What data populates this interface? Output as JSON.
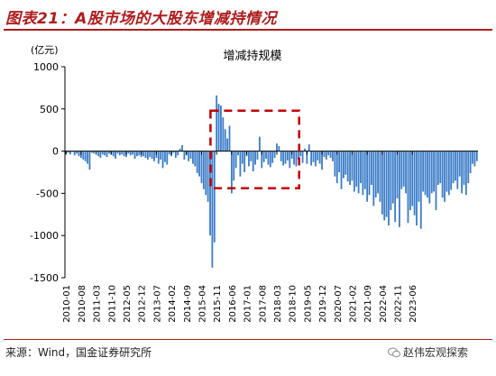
{
  "figure": {
    "title": "图表21：A股市场的大股东增减持情况",
    "source": "来源：Wind，国金证券研究所",
    "watermark": "赵伟宏观探索",
    "watermark_icon": "wechat-icon"
  },
  "chart_data": {
    "type": "bar",
    "title": "增减持规模",
    "ylabel": "(亿元)",
    "xlabel": "",
    "ylim": [
      -1500,
      1000
    ],
    "yticks": [
      1000,
      500,
      0,
      -500,
      -1000,
      -1500
    ],
    "grid": false,
    "legend": "none",
    "bar_color": "#3a7cc8",
    "x_tick_labels": [
      "2010-01",
      "2010-08",
      "2011-03",
      "2011-10",
      "2012-05",
      "2012-12",
      "2013-07",
      "2014-02",
      "2014-09",
      "2015-04",
      "2015-11",
      "2016-06",
      "2017-01",
      "2017-08",
      "2018-03",
      "2018-10",
      "2019-05",
      "2019-12",
      "2020-07",
      "2021-02",
      "2021-09",
      "2022-04",
      "2022-11",
      "2023-06"
    ],
    "start": "2010-01",
    "values": [
      -30,
      -20,
      -40,
      -10,
      -50,
      -30,
      -60,
      -80,
      -100,
      -120,
      -150,
      -220,
      -20,
      -30,
      -10,
      -60,
      -80,
      -40,
      -50,
      -70,
      -30,
      -40,
      -60,
      -90,
      -30,
      -50,
      -40,
      -60,
      -70,
      -30,
      -50,
      -40,
      -90,
      -60,
      -50,
      -70,
      -60,
      -80,
      -100,
      -70,
      -90,
      -120,
      -80,
      -150,
      -100,
      -200,
      -130,
      -160,
      -40,
      -60,
      -20,
      -80,
      -50,
      30,
      70,
      -100,
      -50,
      -120,
      -90,
      -150,
      -180,
      -260,
      -300,
      -380,
      -450,
      -520,
      -600,
      -1000,
      -1380,
      -1080,
      660,
      560,
      540,
      400,
      260,
      150,
      300,
      -500,
      -350,
      -200,
      -50,
      -300,
      -150,
      -250,
      -60,
      -180,
      -120,
      -240,
      -160,
      -100,
      170,
      -200,
      -130,
      -90,
      -160,
      -190,
      -140,
      -80,
      90,
      60,
      -120,
      -170,
      -150,
      -110,
      -200,
      -90,
      -160,
      -180,
      -100,
      -60,
      -140,
      30,
      -150,
      80,
      -170,
      -130,
      -180,
      -110,
      -150,
      -220,
      -70,
      -100,
      -50,
      -80,
      -120,
      -300,
      -380,
      -250,
      -450,
      -320,
      -280,
      -360,
      -400,
      -350,
      -480,
      -420,
      -500,
      -380,
      -520,
      -450,
      -600,
      -520,
      -400,
      -650,
      -550,
      -500,
      -600,
      -750,
      -820,
      -780,
      -880,
      -700,
      -620,
      -840,
      -560,
      -900,
      -450,
      -420,
      -500,
      -850,
      -700,
      -650,
      -760,
      -880,
      -600,
      -920,
      -480,
      -520,
      -550,
      -620,
      -500,
      -480,
      -700,
      -400,
      -380,
      -550,
      -600,
      -480,
      -520,
      -460,
      -380,
      -350,
      -450,
      -300,
      -500,
      -400,
      -520,
      -380,
      -260,
      -150,
      -180,
      -120
    ]
  },
  "annotation": {
    "label": "",
    "color": "#c00000",
    "from": "2015-12",
    "to": "2018-12",
    "y_top": 480,
    "y_bottom": -440
  }
}
